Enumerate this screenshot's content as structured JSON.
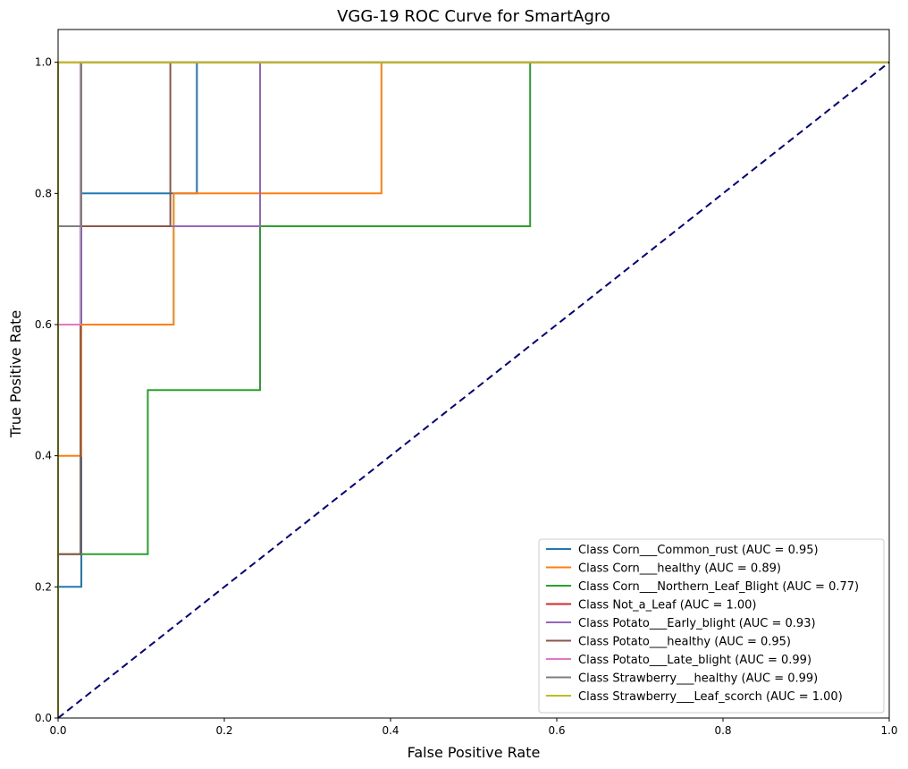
{
  "chart_data": {
    "type": "line",
    "title": "VGG-19 ROC Curve for SmartAgro",
    "xlabel": "False Positive Rate",
    "ylabel": "True Positive Rate",
    "xlim": [
      0.0,
      1.0
    ],
    "ylim": [
      0.0,
      1.05
    ],
    "x_ticks": [
      0.0,
      0.2,
      0.4,
      0.6,
      0.8,
      1.0
    ],
    "y_ticks": [
      0.0,
      0.2,
      0.4,
      0.6,
      0.8,
      1.0
    ],
    "x_tick_labels": [
      "0.0",
      "0.2",
      "0.4",
      "0.6",
      "0.8",
      "1.0"
    ],
    "y_tick_labels": [
      "0.0",
      "0.2",
      "0.4",
      "0.6",
      "0.8",
      "1.0"
    ],
    "grid": false,
    "legend_position": "bottom-right",
    "series": [
      {
        "name": "Class Corn___Common_rust (AUC = 0.95)",
        "color": "#1f77b4",
        "x": [
          0,
          0,
          0.028,
          0.028,
          0.167,
          0.167,
          1.0
        ],
        "y": [
          0,
          0.2,
          0.2,
          0.8,
          0.8,
          1.0,
          1.0
        ]
      },
      {
        "name": "Class Corn___healthy (AUC = 0.89)",
        "color": "#ff7f0e",
        "x": [
          0,
          0,
          0.028,
          0.028,
          0.139,
          0.139,
          0.389,
          0.389,
          1.0
        ],
        "y": [
          0,
          0.4,
          0.4,
          0.6,
          0.6,
          0.8,
          0.8,
          1.0,
          1.0
        ]
      },
      {
        "name": "Class Corn___Northern_Leaf_Blight (AUC = 0.77)",
        "color": "#2ca02c",
        "x": [
          0,
          0,
          0.108,
          0.108,
          0.243,
          0.243,
          0.568,
          0.568,
          1.0
        ],
        "y": [
          0,
          0.25,
          0.25,
          0.5,
          0.5,
          0.75,
          0.75,
          1.0,
          1.0
        ]
      },
      {
        "name": "Class Not_a_Leaf (AUC = 1.00)",
        "color": "#d62728",
        "x": [
          0,
          0,
          1.0
        ],
        "y": [
          0,
          1.0,
          1.0
        ]
      },
      {
        "name": "Class Potato___Early_blight (AUC = 0.93)",
        "color": "#9467bd",
        "x": [
          0,
          0,
          0.243,
          0.243,
          1.0
        ],
        "y": [
          0,
          0.75,
          0.75,
          1.0,
          1.0
        ]
      },
      {
        "name": "Class Potato___healthy (AUC = 0.95)",
        "color": "#8c564b",
        "x": [
          0,
          0,
          0.027,
          0.027,
          0.135,
          0.135,
          1.0
        ],
        "y": [
          0,
          0.25,
          0.25,
          0.75,
          0.75,
          1.0,
          1.0
        ]
      },
      {
        "name": "Class Potato___Late_blight (AUC = 0.99)",
        "color": "#e377c2",
        "x": [
          0,
          0,
          0.027,
          0.027,
          1.0
        ],
        "y": [
          0,
          0.6,
          0.6,
          1.0,
          1.0
        ]
      },
      {
        "name": "Class Strawberry___healthy (AUC = 0.99)",
        "color": "#7f7f7f",
        "x": [
          0,
          0,
          0.028,
          0.028,
          1.0
        ],
        "y": [
          0,
          0.75,
          0.75,
          1.0,
          1.0
        ]
      },
      {
        "name": "Class Strawberry___Leaf_scorch (AUC = 1.00)",
        "color": "#bcbd22",
        "x": [
          0,
          0,
          1.0
        ],
        "y": [
          0,
          1.0,
          1.0
        ]
      }
    ],
    "reference_line": {
      "x": [
        0,
        1
      ],
      "y": [
        0,
        1
      ],
      "color": "#000080",
      "style": "dashed"
    }
  }
}
